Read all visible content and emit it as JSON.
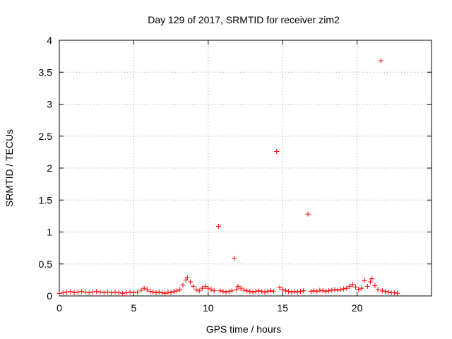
{
  "chart_data": {
    "type": "scatter",
    "title": "Day 129 of 2017, SRMTID for receiver zim2",
    "xlabel": "GPS time / hours",
    "ylabel": "SRMTID / TECUs",
    "xlim": [
      0,
      25
    ],
    "ylim": [
      0,
      4
    ],
    "grid": true,
    "marker": "+",
    "color": "#ff0000",
    "x_ticks": [
      0,
      5,
      10,
      15,
      20
    ],
    "x_tick_labels": [
      "0",
      "5",
      "10",
      "15",
      "20"
    ],
    "y_ticks": [
      0,
      0.5,
      1,
      1.5,
      2,
      2.5,
      3,
      3.5,
      4
    ],
    "y_tick_labels": [
      "0",
      "0.5",
      "1",
      "1.5",
      "2",
      "2.5",
      "3",
      "3.5",
      "4"
    ],
    "series": [
      {
        "name": "SRMTID",
        "points": [
          [
            0.0,
            0.04
          ],
          [
            0.25,
            0.05
          ],
          [
            0.5,
            0.06
          ],
          [
            0.75,
            0.07
          ],
          [
            1.0,
            0.05
          ],
          [
            1.25,
            0.06
          ],
          [
            1.5,
            0.07
          ],
          [
            1.75,
            0.06
          ],
          [
            2.0,
            0.05
          ],
          [
            2.25,
            0.06
          ],
          [
            2.5,
            0.07
          ],
          [
            2.75,
            0.06
          ],
          [
            3.0,
            0.05
          ],
          [
            3.25,
            0.06
          ],
          [
            3.5,
            0.05
          ],
          [
            3.75,
            0.06
          ],
          [
            4.0,
            0.05
          ],
          [
            4.25,
            0.04
          ],
          [
            4.5,
            0.05
          ],
          [
            4.75,
            0.06
          ],
          [
            5.0,
            0.05
          ],
          [
            5.25,
            0.06
          ],
          [
            5.5,
            0.09
          ],
          [
            5.7,
            0.12
          ],
          [
            5.9,
            0.1
          ],
          [
            6.1,
            0.07
          ],
          [
            6.3,
            0.06
          ],
          [
            6.5,
            0.05
          ],
          [
            6.7,
            0.06
          ],
          [
            6.9,
            0.05
          ],
          [
            7.1,
            0.04
          ],
          [
            7.3,
            0.06
          ],
          [
            7.5,
            0.05
          ],
          [
            7.7,
            0.07
          ],
          [
            7.9,
            0.08
          ],
          [
            8.1,
            0.1
          ],
          [
            8.3,
            0.17
          ],
          [
            8.5,
            0.25
          ],
          [
            8.6,
            0.29
          ],
          [
            8.8,
            0.22
          ],
          [
            9.0,
            0.15
          ],
          [
            9.2,
            0.1
          ],
          [
            9.4,
            0.08
          ],
          [
            9.6,
            0.12
          ],
          [
            9.8,
            0.15
          ],
          [
            10.0,
            0.12
          ],
          [
            10.2,
            0.1
          ],
          [
            10.4,
            0.08
          ],
          [
            10.7,
            1.09
          ],
          [
            10.8,
            0.08
          ],
          [
            11.0,
            0.07
          ],
          [
            11.2,
            0.06
          ],
          [
            11.4,
            0.07
          ],
          [
            11.6,
            0.08
          ],
          [
            11.75,
            0.59
          ],
          [
            11.9,
            0.1
          ],
          [
            12.0,
            0.15
          ],
          [
            12.2,
            0.12
          ],
          [
            12.4,
            0.09
          ],
          [
            12.6,
            0.08
          ],
          [
            12.8,
            0.07
          ],
          [
            13.0,
            0.06
          ],
          [
            13.2,
            0.07
          ],
          [
            13.4,
            0.08
          ],
          [
            13.6,
            0.07
          ],
          [
            13.8,
            0.06
          ],
          [
            14.0,
            0.07
          ],
          [
            14.2,
            0.08
          ],
          [
            14.4,
            0.07
          ],
          [
            14.6,
            2.26
          ],
          [
            14.8,
            0.13
          ],
          [
            15.0,
            0.1
          ],
          [
            15.2,
            0.08
          ],
          [
            15.4,
            0.07
          ],
          [
            15.6,
            0.06
          ],
          [
            15.8,
            0.07
          ],
          [
            16.0,
            0.06
          ],
          [
            16.2,
            0.07
          ],
          [
            16.4,
            0.08
          ],
          [
            16.7,
            1.28
          ],
          [
            16.9,
            0.07
          ],
          [
            17.1,
            0.08
          ],
          [
            17.3,
            0.07
          ],
          [
            17.5,
            0.09
          ],
          [
            17.7,
            0.08
          ],
          [
            17.9,
            0.07
          ],
          [
            18.1,
            0.08
          ],
          [
            18.3,
            0.09
          ],
          [
            18.5,
            0.1
          ],
          [
            18.7,
            0.09
          ],
          [
            18.9,
            0.1
          ],
          [
            19.1,
            0.11
          ],
          [
            19.3,
            0.12
          ],
          [
            19.5,
            0.15
          ],
          [
            19.7,
            0.18
          ],
          [
            19.9,
            0.14
          ],
          [
            20.1,
            0.1
          ],
          [
            20.3,
            0.12
          ],
          [
            20.5,
            0.24
          ],
          [
            20.7,
            0.15
          ],
          [
            20.9,
            0.22
          ],
          [
            21.0,
            0.27
          ],
          [
            21.2,
            0.16
          ],
          [
            21.4,
            0.1
          ],
          [
            21.6,
            3.68
          ],
          [
            21.7,
            0.08
          ],
          [
            21.9,
            0.07
          ],
          [
            22.1,
            0.06
          ],
          [
            22.3,
            0.05
          ],
          [
            22.5,
            0.05
          ],
          [
            22.7,
            0.04
          ]
        ]
      }
    ]
  }
}
